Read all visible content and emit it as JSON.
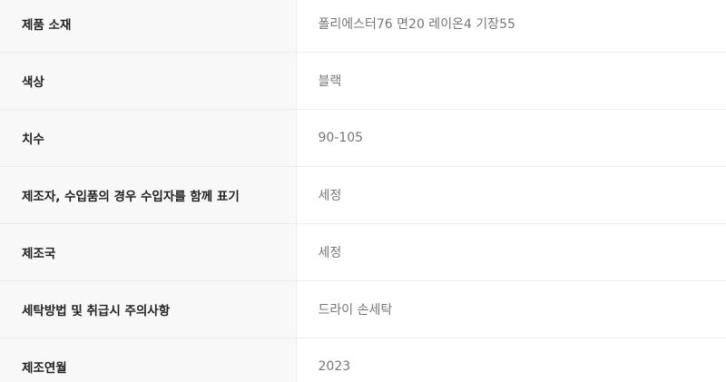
{
  "rows": [
    {
      "label": "제품 소재",
      "value": "폴리에스터76 면20 레이온4 기장55"
    },
    {
      "label": "색상",
      "value": "블랙"
    },
    {
      "label": "치수",
      "value": "90-105"
    },
    {
      "label": "제조자, 수입품의 경우 수입자를 함께 표기",
      "value": "세정"
    },
    {
      "label": "제조국",
      "value": "세정"
    },
    {
      "label": "세탁방법 및 취급시 주의사항",
      "value": "드라이 손세탁"
    },
    {
      "label": "제조연월",
      "value": "2023"
    }
  ]
}
